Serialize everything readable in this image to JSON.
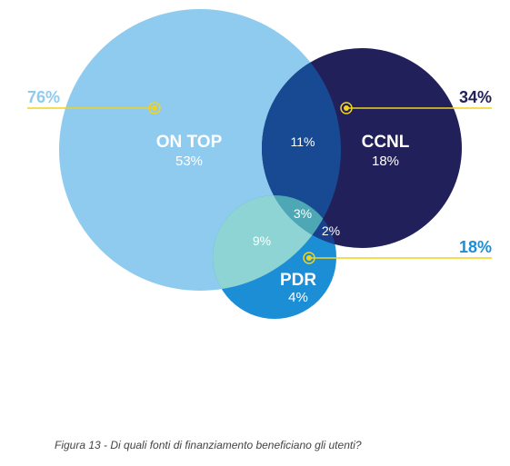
{
  "sets": {
    "on_top": {
      "name": "ON TOP",
      "only_percent": "53%",
      "total_percent": "76%",
      "color": "#8ecbef",
      "total_color": "#8ecbef"
    },
    "ccnl": {
      "name": "CCNL",
      "only_percent": "18%",
      "total_percent": "34%",
      "color": "#22205a",
      "total_color": "#22205a"
    },
    "pdr": {
      "name": "PDR",
      "only_percent": "4%",
      "total_percent": "18%",
      "color": "#1b8ed6",
      "total_color": "#1b8ed6"
    }
  },
  "overlaps": {
    "on_top_ccnl": {
      "percent": "11%",
      "color": "#184a94"
    },
    "on_top_pdr": {
      "percent": "9%",
      "color": "#8ed4d4"
    },
    "ccnl_pdr": {
      "percent": "2%",
      "color": "#1a3f8c"
    },
    "all_three": {
      "percent": "3%",
      "color": "#4da7b4"
    }
  },
  "leader_color": "#f1d31c",
  "caption": "Figura 13 - Di quali fonti di finanziamento beneficiano gli utenti?"
}
